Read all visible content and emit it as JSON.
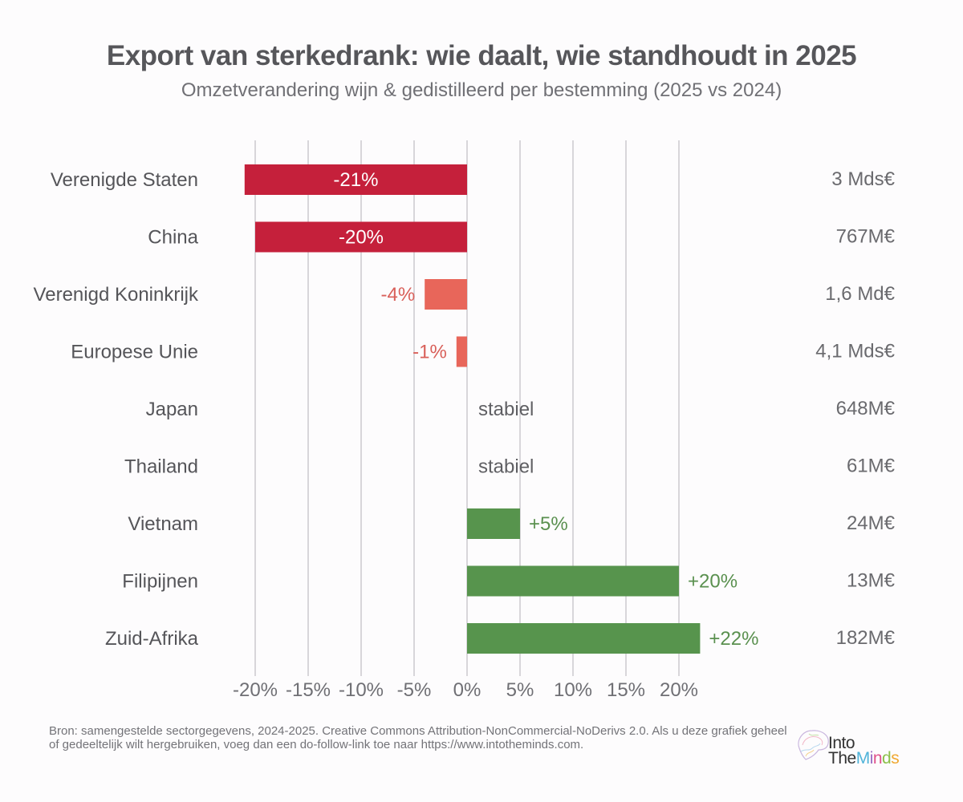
{
  "header": {
    "title": "Export van sterkedrank: wie daalt, wie standhoudt in 2025",
    "subtitle": "Omzetverandering wijn & gedistilleerd per bestemming (2025 vs 2024)"
  },
  "chart_data": {
    "type": "bar",
    "orientation": "horizontal",
    "title": "Export van sterkedrank: wie daalt, wie standhoudt in 2025",
    "subtitle": "Omzetverandering wijn & gedistilleerd per bestemming (2025 vs 2024)",
    "xlabel": "",
    "ylabel": "",
    "xlim": [
      -21,
      22
    ],
    "grid": true,
    "ticks": [
      -20,
      -15,
      -10,
      -5,
      0,
      5,
      10,
      15,
      20
    ],
    "tick_labels": [
      "-20%",
      "-15%",
      "-10%",
      "-5%",
      "0%",
      "5%",
      "10%",
      "15%",
      "20%"
    ],
    "categories": [
      "Verenigde Staten",
      "China",
      "Verenigd Koninkrijk",
      "Europese Unie",
      "Japan",
      "Thailand",
      "Vietnam",
      "Filipijnen",
      "Zuid-Afrika"
    ],
    "values": [
      -21,
      -20,
      -4,
      -1,
      0,
      0,
      5,
      20,
      22
    ],
    "value_labels": [
      "-21%",
      "-20%",
      "-4%",
      "-1%",
      "stabiel",
      "stabiel",
      "+5%",
      "+20%",
      "+22%"
    ],
    "amounts": [
      "3 Mds€",
      "767M€",
      "1,6 Md€",
      "4,1 Mds€",
      "648M€",
      "61M€",
      "24M€",
      "13M€",
      "182M€"
    ],
    "colors": {
      "strong_decline": "#c5203b",
      "mild_decline": "#e8665a",
      "growth": "#57944d",
      "grid": "#d8d6da"
    }
  },
  "footer": {
    "source": "Bron: samengestelde sectorgegevens, 2024-2025. Creative Commons Attribution-NonCommercial-NoDerivs 2.0. Als u deze grafiek geheel of gedeeltelijk wilt hergebruiken, voeg dan een do-follow-link toe naar https://www.intotheminds.com."
  },
  "logo": {
    "line1": "Into",
    "line2_a": "The",
    "line2_b": [
      "M",
      "i",
      "n",
      "d",
      "s"
    ]
  }
}
